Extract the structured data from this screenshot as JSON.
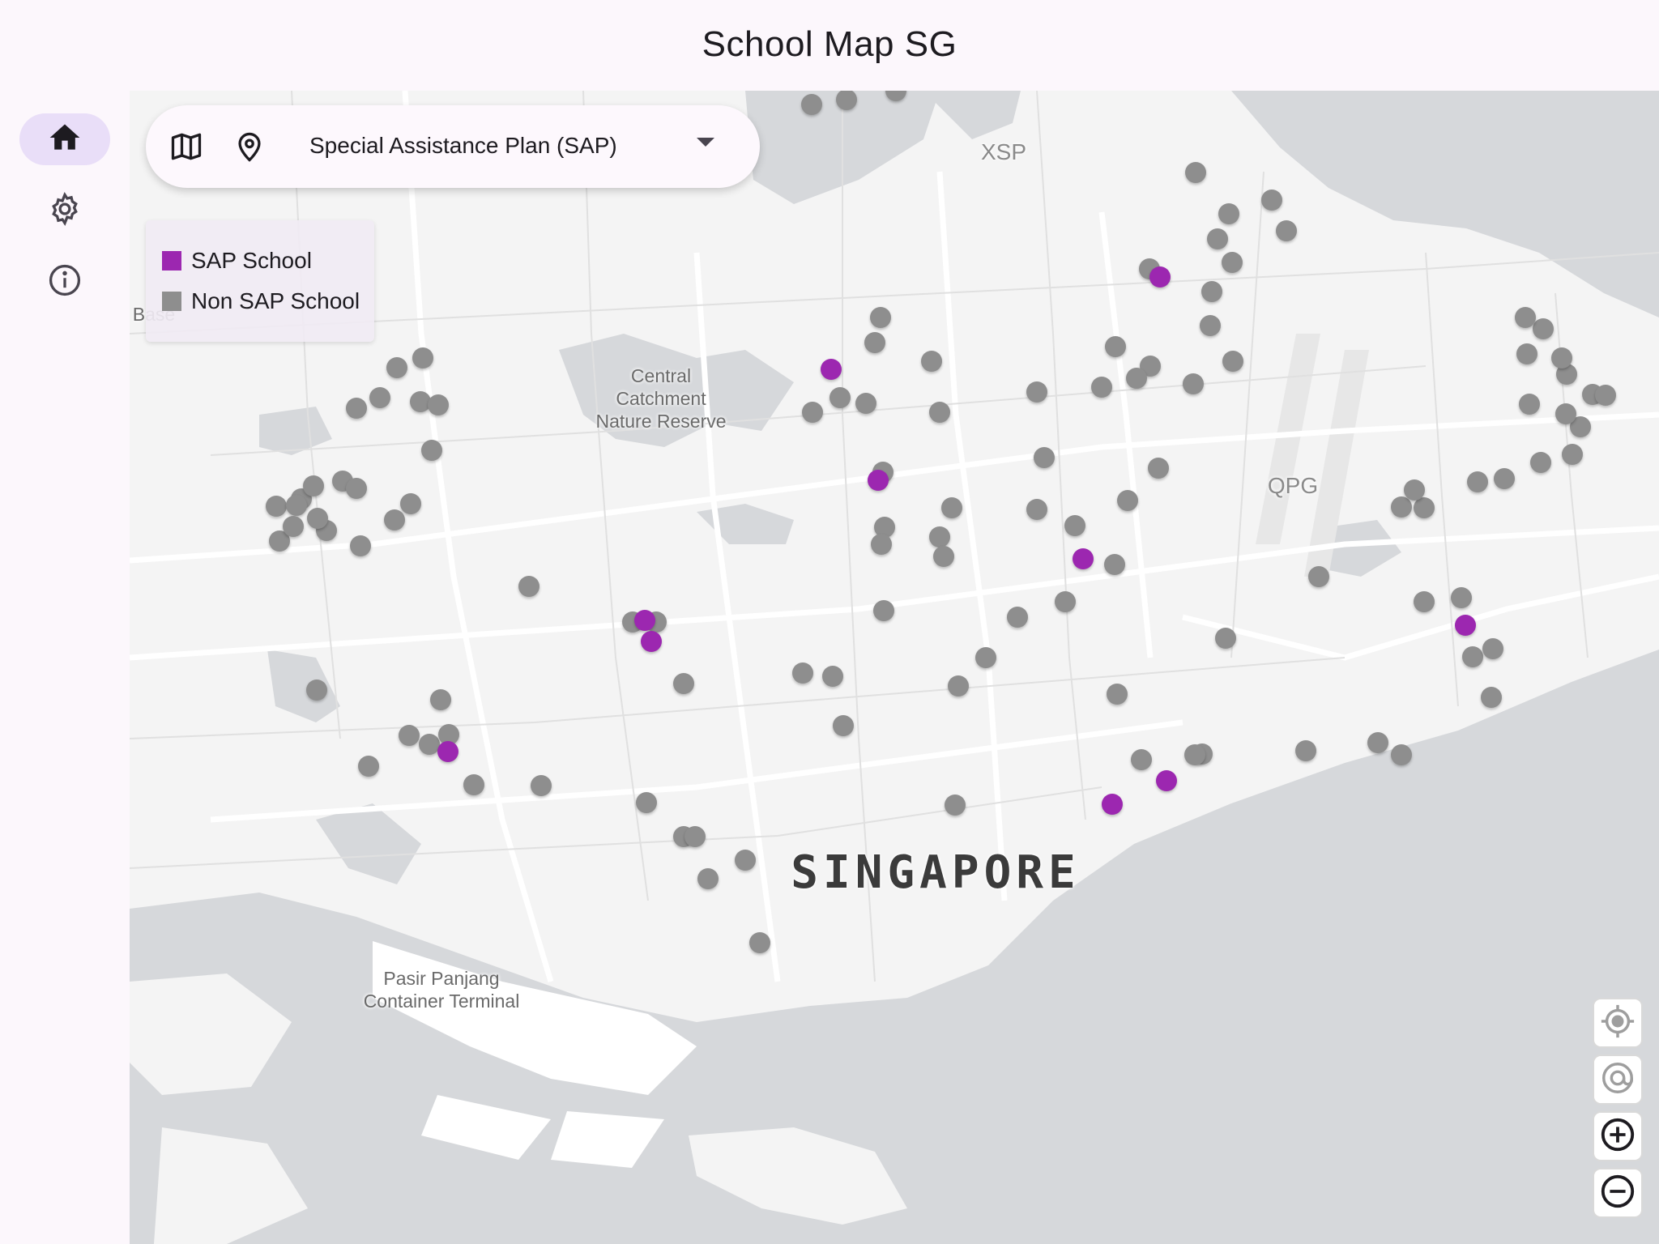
{
  "app": {
    "title": "School Map SG"
  },
  "nav": {
    "items": [
      {
        "name": "home",
        "icon": "home-icon",
        "active": true
      },
      {
        "name": "settings",
        "icon": "gear-icon",
        "active": false
      },
      {
        "name": "about",
        "icon": "info-icon",
        "active": false
      }
    ]
  },
  "search": {
    "map_icon": "map-icon",
    "location_icon": "location-pin-icon",
    "selected_filter": "Special Assistance Plan (SAP)",
    "dropdown_icon": "dropdown-arrow-icon"
  },
  "legend": {
    "items": [
      {
        "label": "SAP School",
        "color": "#9c27b0"
      },
      {
        "label": "Non SAP School",
        "color": "#8e8e8e"
      }
    ]
  },
  "map": {
    "labels": {
      "singapore": "SINGAPORE",
      "reserve": "Central\nCatchment\nNature Reserve",
      "terminal": "Pasir Panjang\nContainer Terminal",
      "xsp": "XSP",
      "qpg": "QPG",
      "base": "Base"
    },
    "colors": {
      "sap": "#9c27b0",
      "non_sap": "#8e8e8e",
      "water": "#d6d8db",
      "land": "#f4f4f4"
    }
  },
  "controls": [
    {
      "name": "my-location-button",
      "icon": "crosshair-icon"
    },
    {
      "name": "track-location-button",
      "icon": "at-target-icon"
    },
    {
      "name": "zoom-in-button",
      "icon": "plus-circle-icon"
    },
    {
      "name": "zoom-out-button",
      "icon": "minus-circle-icon"
    }
  ]
}
